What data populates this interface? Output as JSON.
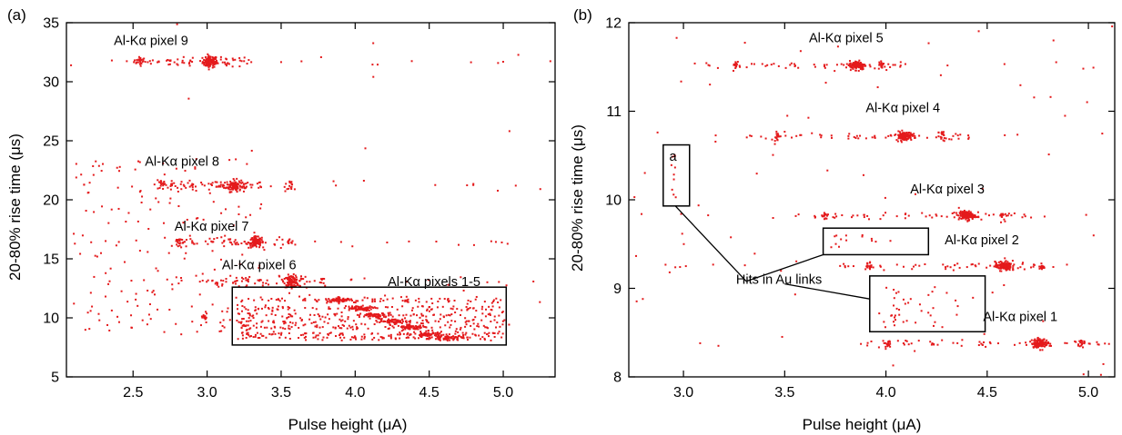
{
  "chart_data": [
    {
      "panel": "(a)",
      "type": "scatter",
      "xlabel": "Pulse height (μA)",
      "ylabel": "20-80% rise time (μs)",
      "xlim": [
        2.05,
        5.35
      ],
      "ylim": [
        5,
        35
      ],
      "xticks": [
        "2.5",
        "3.0",
        "3.5",
        "4.0",
        "4.5",
        "5.0"
      ],
      "yticks": [
        "5",
        "10",
        "15",
        "20",
        "25",
        "30",
        "35"
      ],
      "point_color": "#e41a1c",
      "clusters": [
        {
          "label": "Al-Kα pixel 9",
          "x": 3.02,
          "y": 31.7,
          "x_spread": [
            2.5,
            3.3
          ]
        },
        {
          "label": "Al-Kα pixel 8",
          "x": 3.18,
          "y": 21.2,
          "x_spread": [
            2.7,
            3.4
          ]
        },
        {
          "label": "Al-Kα pixel 7",
          "x": 3.33,
          "y": 16.4,
          "x_spread": [
            2.8,
            3.6
          ]
        },
        {
          "label": "Al-Kα pixel 6",
          "x": 3.57,
          "y": 13.1,
          "x_spread": [
            3.0,
            3.8
          ]
        },
        {
          "label": "Al-Kα pixels 1-5",
          "x": 4.1,
          "y": 10.2,
          "x_spread": [
            3.2,
            5.0
          ]
        }
      ],
      "annotations": [
        {
          "text": "Al-Kα pixel 9",
          "x": 2.37,
          "y": 33.1
        },
        {
          "text": "Al-Kα pixel 8",
          "x": 2.58,
          "y": 22.9
        },
        {
          "text": "Al-Kα pixel 7",
          "x": 2.78,
          "y": 17.4
        },
        {
          "text": "Al-Kα pixel 6",
          "x": 3.1,
          "y": 14.1
        },
        {
          "text": "Al-Kα pixels 1-5",
          "x": 4.22,
          "y": 12.7
        }
      ],
      "boxes": [
        {
          "x0": 3.17,
          "x1": 5.02,
          "y0": 7.7,
          "y1": 12.6
        }
      ]
    },
    {
      "panel": "(b)",
      "type": "scatter",
      "xlabel": "Pulse height (μA)",
      "ylabel": "20-80% rise time (μs)",
      "xlim": [
        2.73,
        5.13
      ],
      "ylim": [
        8,
        12
      ],
      "xticks": [
        "3.0",
        "3.5",
        "4.0",
        "4.5",
        "5.0"
      ],
      "yticks": [
        "8",
        "9",
        "10",
        "11",
        "12"
      ],
      "point_color": "#e41a1c",
      "clusters": [
        {
          "label": "Al-Kα pixel 5",
          "x": 3.86,
          "y": 11.52
        },
        {
          "label": "Al-Kα pixel 4",
          "x": 4.09,
          "y": 10.72
        },
        {
          "label": "Al-Kα pixel 3",
          "x": 4.4,
          "y": 9.82
        },
        {
          "label": "Al-Kα pixel 2",
          "x": 4.58,
          "y": 9.25
        },
        {
          "label": "Al-Kα pixel 1",
          "x": 4.76,
          "y": 8.38
        }
      ],
      "annotations": [
        {
          "text": "Al-Kα pixel 5",
          "x": 3.62,
          "y": 11.78
        },
        {
          "text": "Al-Kα pixel 4",
          "x": 3.9,
          "y": 10.99
        },
        {
          "text": "Al-Kα pixel 3",
          "x": 4.12,
          "y": 10.07
        },
        {
          "text": "Al-Kα pixel 2",
          "x": 4.29,
          "y": 9.5
        },
        {
          "text": "Al-Kα pixel 1",
          "x": 4.48,
          "y": 8.63
        },
        {
          "text": "Hits in Au links",
          "x": 3.26,
          "y": 9.05
        },
        {
          "text": "a",
          "x": 2.93,
          "y": 10.44
        }
      ],
      "boxes": [
        {
          "x0": 2.9,
          "x1": 3.03,
          "y0": 9.93,
          "y1": 10.62
        },
        {
          "x0": 3.69,
          "x1": 4.21,
          "y0": 9.38,
          "y1": 9.68
        },
        {
          "x0": 3.92,
          "x1": 4.49,
          "y0": 8.51,
          "y1": 9.14
        }
      ],
      "leader_lines": [
        {
          "from": [
            3.31,
            9.08
          ],
          "to": [
            2.96,
            9.93
          ]
        },
        {
          "from": [
            3.31,
            9.08
          ],
          "to": [
            3.69,
            9.38
          ]
        },
        {
          "from": [
            3.5,
            9.05
          ],
          "to": [
            3.92,
            8.88
          ]
        }
      ]
    }
  ]
}
